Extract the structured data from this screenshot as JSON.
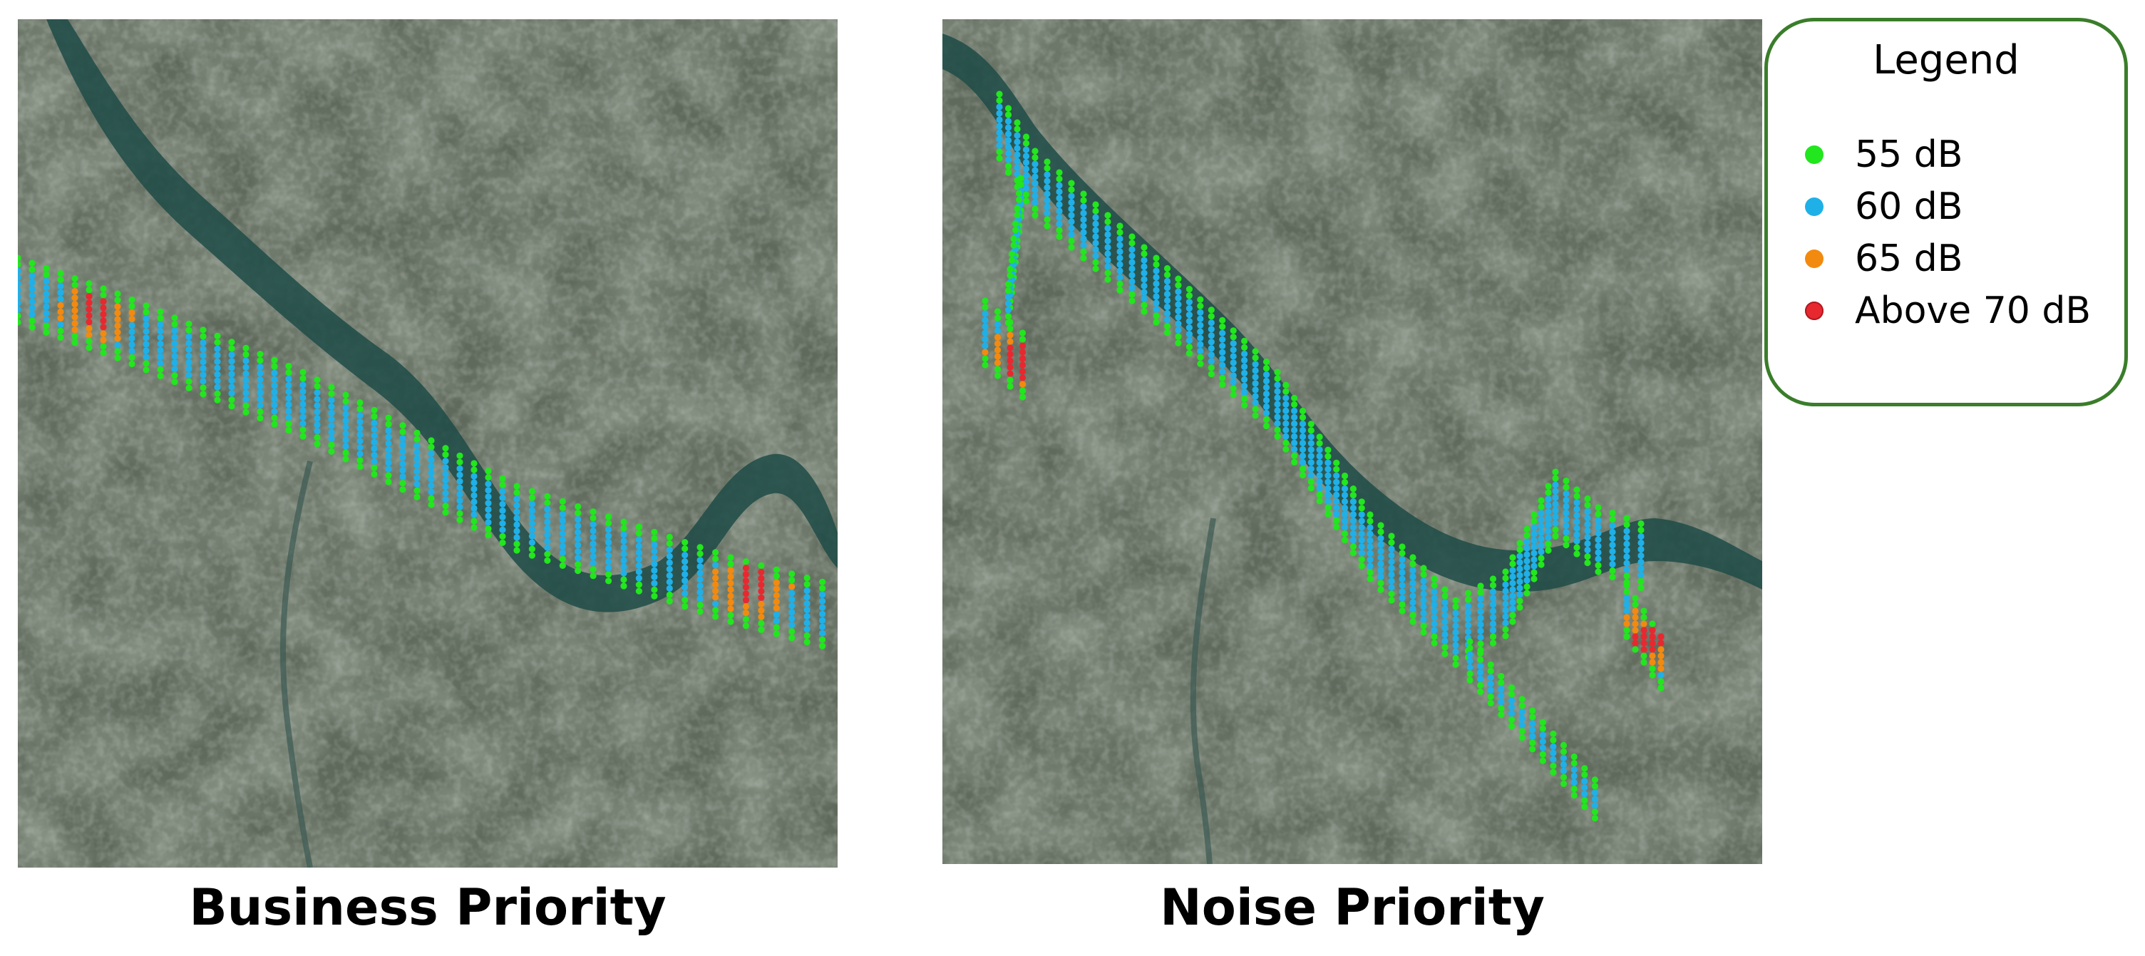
{
  "maps": [
    {
      "id": "business",
      "caption": "Business Priority"
    },
    {
      "id": "noise",
      "caption": "Noise Priority"
    }
  ],
  "legend": {
    "title": "Legend",
    "items": [
      {
        "label": "55 dB",
        "color": "#22e61e"
      },
      {
        "label": "60 dB",
        "color": "#1fb0e8"
      },
      {
        "label": "65 dB",
        "color": "#f28a10"
      },
      {
        "label": "Above 70 dB",
        "color": "#e8282f"
      }
    ]
  },
  "colors": {
    "river": "#1d4f4a",
    "terrain": "#5e6b5d",
    "border": "#3a7d2a"
  }
}
